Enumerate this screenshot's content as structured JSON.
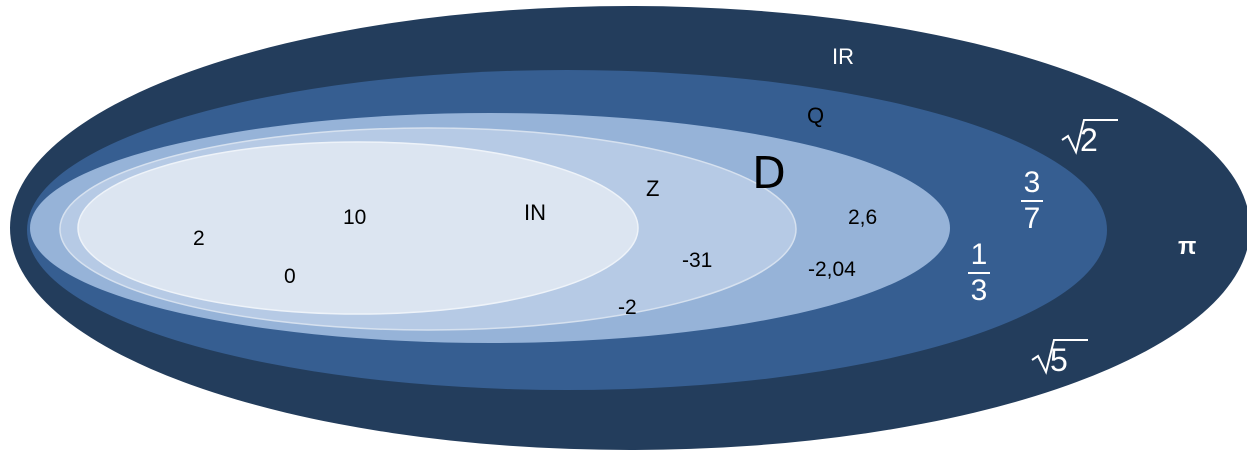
{
  "colors": {
    "R": "#233d5c",
    "Q": "#365e91",
    "D": "#96b3d8",
    "Z": "#b6cae5",
    "N": "#dce5f1",
    "dark_text": "#000000",
    "light_text": "#ffffff"
  },
  "sets": {
    "R": "IR",
    "Q": "Q",
    "D": "D",
    "Z": "Z",
    "N": "IN"
  },
  "elements": {
    "n_two": "2",
    "n_ten": "10",
    "n_zero": "0",
    "z_minus31": "-31",
    "z_minus2": "-2",
    "d_twopointsix": "2,6",
    "d_minus2point04": "-2,04",
    "q_three_sevenths": {
      "num": "3",
      "den": "7"
    },
    "q_one_third": {
      "num": "1",
      "den": "3"
    },
    "r_sqrt2": "2",
    "r_sqrt5": "5",
    "r_pi": "π"
  }
}
